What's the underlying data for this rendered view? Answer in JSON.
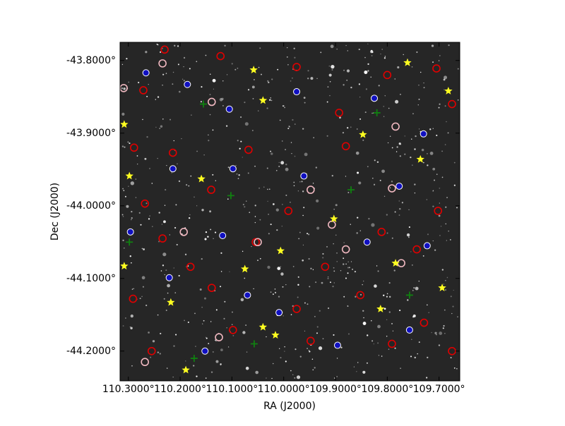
{
  "chart_data": {
    "type": "scatter",
    "xlabel": "RA (J2000)",
    "ylabel": "Dec (J2000)",
    "xlim": [
      110.316,
      109.66
    ],
    "ylim": [
      -44.241,
      -43.775
    ],
    "xticks": [
      {
        "value": 110.3,
        "label": "110.3000°"
      },
      {
        "value": 110.2,
        "label": "110.2000°"
      },
      {
        "value": 110.1,
        "label": "110.1000°"
      },
      {
        "value": 110.0,
        "label": "110.0000°"
      },
      {
        "value": 109.9,
        "label": "109.9000°"
      },
      {
        "value": 109.8,
        "label": "109.8000°"
      },
      {
        "value": 109.7,
        "label": "109.7000°"
      }
    ],
    "yticks": [
      {
        "value": -43.8,
        "label": "-43.8000°"
      },
      {
        "value": -43.9,
        "label": "-43.9000°"
      },
      {
        "value": -44.0,
        "label": "-44.0000°"
      },
      {
        "value": -44.1,
        "label": "-44.1000°"
      },
      {
        "value": -44.2,
        "label": "-44.2000°"
      }
    ],
    "background": "#262626",
    "series": [
      {
        "color": "#e00000",
        "marker": "circle",
        "x": [
          110.23,
          110.271,
          110.122,
          109.975,
          109.8,
          109.705,
          110.289,
          110.214,
          110.068,
          109.88,
          109.675,
          110.268,
          110.14,
          109.991,
          109.811,
          109.702,
          110.234,
          110.054,
          109.92,
          109.743,
          110.291,
          110.139,
          109.975,
          109.852,
          109.729,
          110.255,
          110.098,
          109.948,
          109.791,
          109.675,
          110.18,
          109.893
        ],
        "values": [
          -43.785,
          -43.841,
          -43.794,
          -43.809,
          -43.82,
          -43.811,
          -43.92,
          -43.927,
          -43.923,
          -43.918,
          -43.86,
          -43.997,
          -43.978,
          -44.007,
          -44.036,
          -44.007,
          -44.045,
          -44.05,
          -44.084,
          -44.06,
          -44.128,
          -44.113,
          -44.142,
          -44.123,
          -44.161,
          -44.2,
          -44.171,
          -44.186,
          -44.19,
          -44.2,
          -44.084,
          -43.872
        ]
      },
      {
        "color": "#1010c0",
        "marker": "dot",
        "x": [
          110.266,
          110.186,
          110.105,
          109.975,
          109.825,
          109.73,
          110.214,
          110.098,
          109.961,
          109.777,
          110.296,
          110.118,
          109.839,
          109.723,
          110.221,
          110.07,
          109.896,
          109.757,
          110.152,
          110.009
        ],
        "values": [
          -43.817,
          -43.833,
          -43.867,
          -43.843,
          -43.852,
          -43.901,
          -43.949,
          -43.949,
          -43.959,
          -43.973,
          -44.036,
          -44.041,
          -44.05,
          -44.055,
          -44.099,
          -44.123,
          -44.192,
          -44.171,
          -44.2,
          -44.147
        ]
      },
      {
        "color": "#f0b8c0",
        "marker": "circle",
        "x": [
          110.234,
          110.309,
          110.139,
          109.784,
          109.948,
          109.791,
          109.907,
          109.88,
          109.773,
          110.05,
          110.268,
          110.125,
          110.193
        ],
        "values": [
          -43.804,
          -43.838,
          -43.857,
          -43.891,
          -43.978,
          -43.976,
          -44.026,
          -44.06,
          -44.079,
          -44.05,
          -44.215,
          -44.181,
          -44.036
        ]
      },
      {
        "color": "#108010",
        "marker": "plus",
        "x": [
          110.155,
          109.82,
          110.102,
          109.87,
          110.298,
          110.057,
          110.173,
          109.757
        ],
        "values": [
          -43.86,
          -43.872,
          -43.986,
          -43.978,
          -44.05,
          -44.19,
          -44.21,
          -44.123
        ]
      },
      {
        "color": "#ffff20",
        "marker": "star",
        "x": [
          110.058,
          109.761,
          110.04,
          110.308,
          109.847,
          109.682,
          109.736,
          110.298,
          110.159,
          109.903,
          110.006,
          109.784,
          110.075,
          110.308,
          109.694,
          110.218,
          109.813,
          110.04,
          110.016,
          110.189
        ],
        "values": [
          -43.813,
          -43.803,
          -43.855,
          -43.888,
          -43.902,
          -43.842,
          -43.936,
          -43.959,
          -43.963,
          -44.018,
          -44.062,
          -44.079,
          -44.087,
          -44.083,
          -44.113,
          -44.133,
          -44.142,
          -44.167,
          -44.178,
          -44.226
        ]
      }
    ]
  }
}
